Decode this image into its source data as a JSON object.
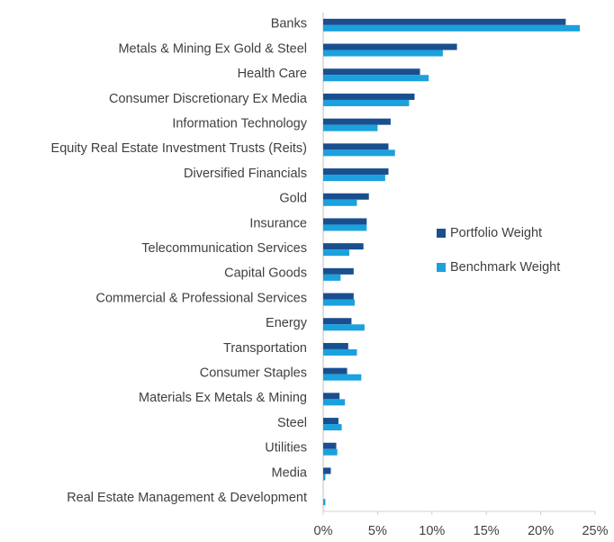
{
  "chart_data": {
    "type": "hbar",
    "categories": [
      "Banks",
      "Metals & Mining Ex Gold & Steel",
      "Health Care",
      "Consumer Discretionary Ex Media",
      "Information Technology",
      "Equity Real Estate Investment Trusts (Reits)",
      "Diversified Financials",
      "Gold",
      "Insurance",
      "Telecommunication Services",
      "Capital Goods",
      "Commercial & Professional Services",
      "Energy",
      "Transportation",
      "Consumer Staples",
      "Materials Ex Metals & Mining",
      "Steel",
      "Utilities",
      "Media",
      "Real Estate Management & Development"
    ],
    "series": [
      {
        "name": "Portfolio Weight",
        "color": "#1a4f8f",
        "values": [
          22.3,
          12.3,
          8.9,
          8.4,
          6.2,
          6.0,
          6.0,
          4.2,
          4.0,
          3.7,
          2.8,
          2.8,
          2.6,
          2.3,
          2.2,
          1.5,
          1.4,
          1.2,
          0.7,
          0
        ]
      },
      {
        "name": "Benchmark Weight",
        "color": "#1ba1dd",
        "values": [
          23.6,
          11.0,
          9.7,
          7.9,
          5.0,
          6.6,
          5.7,
          3.1,
          4.0,
          2.4,
          1.6,
          2.9,
          3.8,
          3.1,
          3.5,
          2.0,
          1.7,
          1.3,
          0.2,
          0.2
        ]
      }
    ],
    "xlim": [
      0,
      25
    ],
    "xticks": [
      {
        "value": 0,
        "label": "0%"
      },
      {
        "value": 5,
        "label": "5%"
      },
      {
        "value": 10,
        "label": "10%"
      },
      {
        "value": 15,
        "label": "15%"
      },
      {
        "value": 20,
        "label": "20%"
      },
      {
        "value": 25,
        "label": "25%"
      }
    ],
    "legend": "right"
  }
}
